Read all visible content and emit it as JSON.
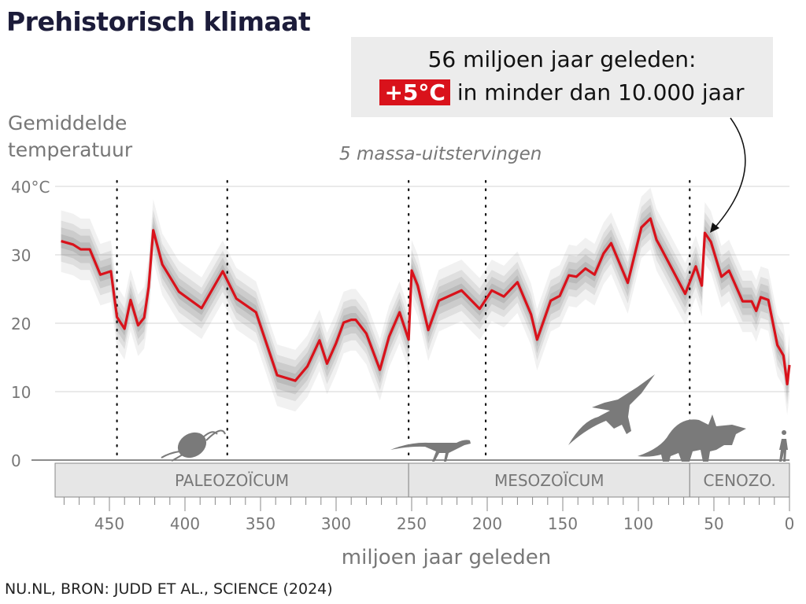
{
  "title": "Prehistorisch klimaat",
  "annotation": {
    "line1": "56 miljoen jaar geleden:",
    "badge": "+5°C",
    "line2": " in minder dan 10.000 jaar",
    "points_to_myr": 56
  },
  "extinctions_label": "5 massa-uitstervingen",
  "source": "NU.NL, BRON: JUDD ET AL., SCIENCE (2024)",
  "colors": {
    "line": "#d9121b",
    "band": "#888888",
    "era": "#e6e6e6",
    "silhouette": "#7a7a7a"
  },
  "chart_data": {
    "type": "line",
    "title": "Prehistorisch klimaat",
    "ylabel": "Gemiddelde temperatuur",
    "xlabel": "miljoen jaar geleden",
    "xlim": [
      485,
      0
    ],
    "ylim": [
      0,
      40
    ],
    "x_reversed": true,
    "grid": "horizontal",
    "uncertainty_band": true,
    "yticks": [
      {
        "v": 40,
        "label": "40°C"
      },
      {
        "v": 30,
        "label": "30"
      },
      {
        "v": 20,
        "label": "20"
      },
      {
        "v": 10,
        "label": "10"
      },
      {
        "v": 0,
        "label": "0"
      }
    ],
    "xticks": [
      {
        "v": 450,
        "label": "450"
      },
      {
        "v": 400,
        "label": "400"
      },
      {
        "v": 350,
        "label": "350"
      },
      {
        "v": 300,
        "label": "300"
      },
      {
        "v": 250,
        "label": "250"
      },
      {
        "v": 200,
        "label": "200"
      },
      {
        "v": 150,
        "label": "150"
      },
      {
        "v": 100,
        "label": "100"
      },
      {
        "v": 50,
        "label": "50"
      },
      {
        "v": 0,
        "label": "0"
      }
    ],
    "extinctions": [
      445,
      372,
      252,
      201,
      66
    ],
    "eras": [
      {
        "label": "PALEOZOÏCUM",
        "from": 485,
        "to": 252
      },
      {
        "label": "MESOZOÏCUM",
        "from": 252,
        "to": 66
      },
      {
        "label": "CENOZO.",
        "from": 66,
        "to": 0
      }
    ],
    "x": [
      482,
      474,
      469,
      463,
      456,
      449,
      445,
      440,
      436,
      431,
      427,
      424,
      421,
      415,
      404,
      389,
      375,
      366,
      353,
      339,
      327,
      319,
      311,
      306,
      300,
      295,
      290,
      287,
      280,
      271,
      265,
      258,
      252,
      250,
      246,
      239,
      232,
      217,
      205,
      197,
      189,
      180,
      171,
      167,
      158,
      152,
      146,
      141,
      135,
      129,
      123,
      118,
      107,
      98,
      92,
      88,
      86,
      69,
      62,
      58,
      56,
      52,
      45,
      40,
      31,
      25,
      22,
      19,
      14,
      8,
      4,
      1.5,
      0
    ],
    "y": [
      32.0,
      31.5,
      30.8,
      30.8,
      27.1,
      27.6,
      20.9,
      19.2,
      23.4,
      19.7,
      20.8,
      25.3,
      33.6,
      28.6,
      24.6,
      22.2,
      27.6,
      23.6,
      21.6,
      12.4,
      11.6,
      13.7,
      17.5,
      14.1,
      17.1,
      20.1,
      20.5,
      20.5,
      18.5,
      13.2,
      18.0,
      21.6,
      17.6,
      27.7,
      25.5,
      19.0,
      23.3,
      24.8,
      22.1,
      24.8,
      23.9,
      26.0,
      21.3,
      17.6,
      23.3,
      24.0,
      27.0,
      26.8,
      28.0,
      27.1,
      30.2,
      31.7,
      25.9,
      34.0,
      35.3,
      32.2,
      31.4,
      24.3,
      28.3,
      25.5,
      33.2,
      31.9,
      26.8,
      27.7,
      23.2,
      23.2,
      21.8,
      23.8,
      23.4,
      16.8,
      15.3,
      11.1,
      13.9
    ]
  }
}
